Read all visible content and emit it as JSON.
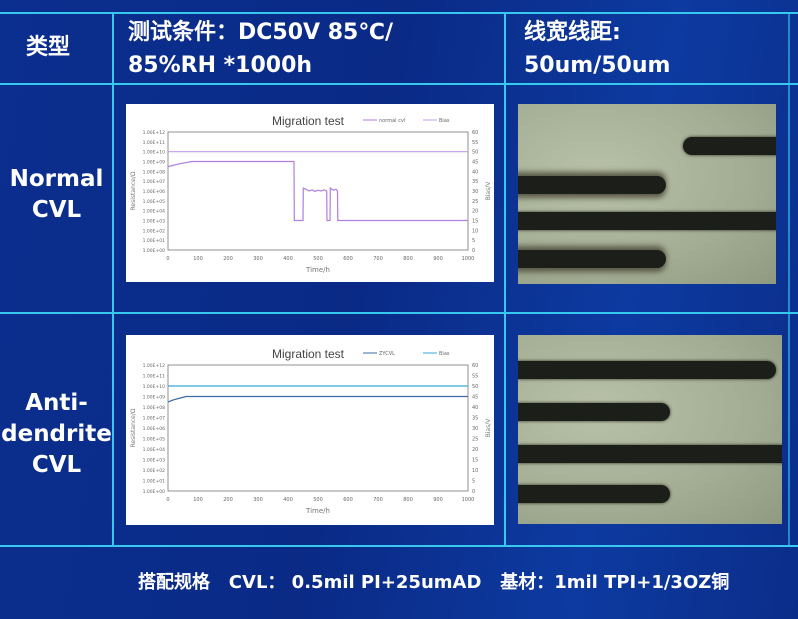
{
  "header": {
    "type_label": "类型",
    "condition_line1": "测试条件：DC50V 85℃/",
    "condition_line2": "85%RH *1000h",
    "spacing_line1": "线宽线距:",
    "spacing_line2": "50um/50um"
  },
  "rows": [
    {
      "label_line1": "Normal",
      "label_line2": "CVL",
      "label_line3": ""
    },
    {
      "label_line1": "Anti-",
      "label_line2": "dendrite",
      "label_line3": "CVL"
    }
  ],
  "footer": {
    "text": "搭配规格   CVL： 0.5mil PI+25umAD   基材：1mil TPI+1/3OZ铜"
  },
  "colors": {
    "background": "#0b2f8f",
    "grid_lines": "#36c8ee"
  },
  "chart_data": [
    {
      "type": "line",
      "title": "Migration test",
      "xlabel": "Time/h",
      "ylabel": "Resistance/Ω",
      "y2label": "Bias/V",
      "xlim": [
        0,
        1000
      ],
      "ylim": [
        1,
        1000000000000.0
      ],
      "yscale": "log",
      "y2lim": [
        0,
        60
      ],
      "x_ticks": [
        "0",
        "100",
        "200",
        "300",
        "400",
        "500",
        "600",
        "700",
        "800",
        "900",
        "1000"
      ],
      "y_ticks": [
        "1.00E+00",
        "1.00E+01",
        "1.00E+02",
        "1.00E+03",
        "1.00E+04",
        "1.00E+05",
        "1.00E+06",
        "1.00E+07",
        "1.00E+08",
        "1.00E+09",
        "1.00E+10",
        "1.00E+11",
        "1.00E+12"
      ],
      "y2_ticks": [
        "0",
        "5",
        "10",
        "15",
        "20",
        "25",
        "30",
        "35",
        "40",
        "45",
        "50",
        "55",
        "60"
      ],
      "legend_position": "top-right",
      "series": [
        {
          "name": "normal cvl",
          "axis": "left",
          "color": "#b07de0",
          "x": [
            0,
            40,
            80,
            420,
            421,
            450,
            451,
            460,
            470,
            480,
            490,
            500,
            510,
            520,
            529,
            530,
            540,
            541,
            550,
            560,
            565,
            566,
            1000
          ],
          "y": [
            300000000.0,
            600000000.0,
            1000000000.0,
            1000000000.0,
            1000.0,
            1000.0,
            2000000.0,
            1500000.0,
            1000000.0,
            1300000.0,
            900000.0,
            1200000.0,
            1000000.0,
            1300000.0,
            1000000.0,
            1000.0,
            1000.0,
            2000000.0,
            1200000.0,
            1500000.0,
            1000000.0,
            1000.0,
            1000.0
          ]
        },
        {
          "name": "Bias",
          "axis": "right",
          "color": "#c49bea",
          "x": [
            0,
            1000
          ],
          "y": [
            50,
            50
          ]
        }
      ]
    },
    {
      "type": "line",
      "title": "Migration test",
      "xlabel": "Time/h",
      "ylabel": "Resistance/Ω",
      "y2label": "Bias/V",
      "xlim": [
        0,
        1000
      ],
      "ylim": [
        1,
        1000000000000.0
      ],
      "yscale": "log",
      "y2lim": [
        0,
        60
      ],
      "x_ticks": [
        "0",
        "100",
        "200",
        "300",
        "400",
        "500",
        "600",
        "700",
        "800",
        "900",
        "1000"
      ],
      "y_ticks": [
        "1.00E+00",
        "1.00E+01",
        "1.00E+02",
        "1.00E+03",
        "1.00E+04",
        "1.00E+05",
        "1.00E+06",
        "1.00E+07",
        "1.00E+08",
        "1.00E+09",
        "1.00E+10",
        "1.00E+11",
        "1.00E+12"
      ],
      "y2_ticks": [
        "0",
        "5",
        "10",
        "15",
        "20",
        "25",
        "30",
        "35",
        "40",
        "45",
        "50",
        "55",
        "60"
      ],
      "legend_position": "top-right",
      "series": [
        {
          "name": "ZYCVL",
          "axis": "left",
          "color": "#3a6aa8",
          "x": [
            0,
            20,
            40,
            60,
            1000
          ],
          "y": [
            300000000.0,
            500000000.0,
            700000000.0,
            1000000000.0,
            1000000000.0
          ]
        },
        {
          "name": "Bias",
          "axis": "right",
          "color": "#3aa8d8",
          "x": [
            0,
            1000
          ],
          "y": [
            50,
            50
          ]
        }
      ]
    }
  ]
}
